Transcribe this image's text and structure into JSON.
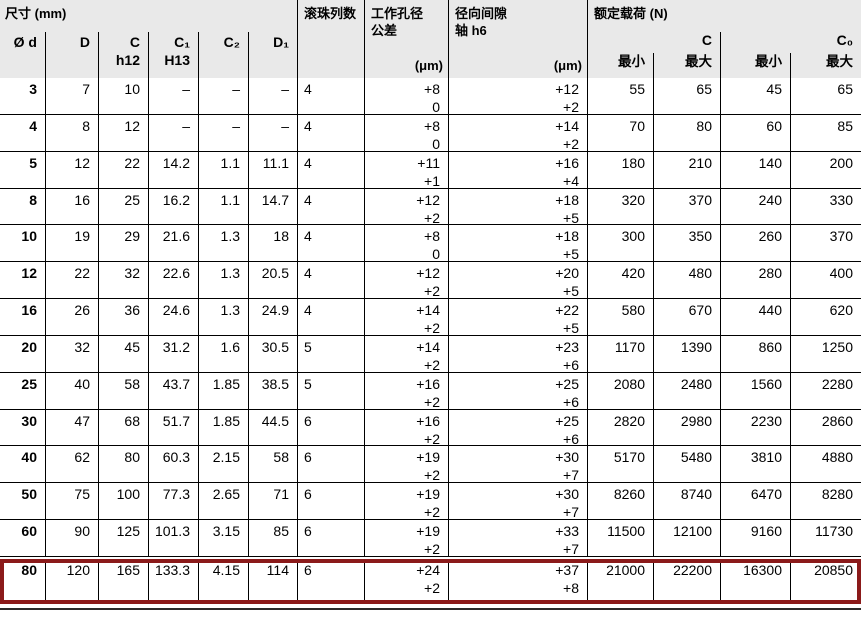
{
  "header": {
    "dim_group_label": "尺寸 (mm)",
    "symbols": [
      {
        "line1": "Ø d",
        "line2": ""
      },
      {
        "line1": "D",
        "line2": ""
      },
      {
        "line1": "C",
        "line2": "h12"
      },
      {
        "line1": "C₁",
        "line2": "H13"
      },
      {
        "line1": "C₂",
        "line2": ""
      },
      {
        "line1": "D₁",
        "line2": ""
      }
    ],
    "ball_rows_label": "滚珠列数",
    "bore": {
      "line1": "工作孔径",
      "line2": "公差",
      "unit": "(μm)"
    },
    "radial": {
      "line1": "径向间隙",
      "line2": "轴 h6",
      "unit": "(μm)"
    },
    "load": {
      "group_label": "额定载荷 (N)",
      "c_label": "C",
      "c0_label": "C₀",
      "min_label": "最小",
      "max_label": "最大"
    }
  },
  "rows": [
    {
      "d": "3",
      "D": "7",
      "C": "10",
      "C1": "–",
      "C2": "–",
      "D1": "–",
      "balls": "4",
      "bore_hi": "+8",
      "bore_lo": "0",
      "rad_hi": "+12",
      "rad_lo": "+2",
      "c_min": "55",
      "c_max": "65",
      "c0_min": "45",
      "c0_max": "65",
      "highlight": false
    },
    {
      "d": "4",
      "D": "8",
      "C": "12",
      "C1": "–",
      "C2": "–",
      "D1": "–",
      "balls": "4",
      "bore_hi": "+8",
      "bore_lo": "0",
      "rad_hi": "+14",
      "rad_lo": "+2",
      "c_min": "70",
      "c_max": "80",
      "c0_min": "60",
      "c0_max": "85",
      "highlight": false
    },
    {
      "d": "5",
      "D": "12",
      "C": "22",
      "C1": "14.2",
      "C2": "1.1",
      "D1": "11.1",
      "balls": "4",
      "bore_hi": "+11",
      "bore_lo": "+1",
      "rad_hi": "+16",
      "rad_lo": "+4",
      "c_min": "180",
      "c_max": "210",
      "c0_min": "140",
      "c0_max": "200",
      "highlight": false
    },
    {
      "d": "8",
      "D": "16",
      "C": "25",
      "C1": "16.2",
      "C2": "1.1",
      "D1": "14.7",
      "balls": "4",
      "bore_hi": "+12",
      "bore_lo": "+2",
      "rad_hi": "+18",
      "rad_lo": "+5",
      "c_min": "320",
      "c_max": "370",
      "c0_min": "240",
      "c0_max": "330",
      "highlight": false
    },
    {
      "d": "10",
      "D": "19",
      "C": "29",
      "C1": "21.6",
      "C2": "1.3",
      "D1": "18",
      "balls": "4",
      "bore_hi": "+8",
      "bore_lo": "0",
      "rad_hi": "+18",
      "rad_lo": "+5",
      "c_min": "300",
      "c_max": "350",
      "c0_min": "260",
      "c0_max": "370",
      "highlight": false
    },
    {
      "d": "12",
      "D": "22",
      "C": "32",
      "C1": "22.6",
      "C2": "1.3",
      "D1": "20.5",
      "balls": "4",
      "bore_hi": "+12",
      "bore_lo": "+2",
      "rad_hi": "+20",
      "rad_lo": "+5",
      "c_min": "420",
      "c_max": "480",
      "c0_min": "280",
      "c0_max": "400",
      "highlight": false
    },
    {
      "d": "16",
      "D": "26",
      "C": "36",
      "C1": "24.6",
      "C2": "1.3",
      "D1": "24.9",
      "balls": "4",
      "bore_hi": "+14",
      "bore_lo": "+2",
      "rad_hi": "+22",
      "rad_lo": "+5",
      "c_min": "580",
      "c_max": "670",
      "c0_min": "440",
      "c0_max": "620",
      "highlight": false
    },
    {
      "d": "20",
      "D": "32",
      "C": "45",
      "C1": "31.2",
      "C2": "1.6",
      "D1": "30.5",
      "balls": "5",
      "bore_hi": "+14",
      "bore_lo": "+2",
      "rad_hi": "+23",
      "rad_lo": "+6",
      "c_min": "1170",
      "c_max": "1390",
      "c0_min": "860",
      "c0_max": "1250",
      "highlight": false
    },
    {
      "d": "25",
      "D": "40",
      "C": "58",
      "C1": "43.7",
      "C2": "1.85",
      "D1": "38.5",
      "balls": "5",
      "bore_hi": "+16",
      "bore_lo": "+2",
      "rad_hi": "+25",
      "rad_lo": "+6",
      "c_min": "2080",
      "c_max": "2480",
      "c0_min": "1560",
      "c0_max": "2280",
      "highlight": false
    },
    {
      "d": "30",
      "D": "47",
      "C": "68",
      "C1": "51.7",
      "C2": "1.85",
      "D1": "44.5",
      "balls": "6",
      "bore_hi": "+16",
      "bore_lo": "+2",
      "rad_hi": "+25",
      "rad_lo": "+6",
      "c_min": "2820",
      "c_max": "2980",
      "c0_min": "2230",
      "c0_max": "2860",
      "highlight": false
    },
    {
      "d": "40",
      "D": "62",
      "C": "80",
      "C1": "60.3",
      "C2": "2.15",
      "D1": "58",
      "balls": "6",
      "bore_hi": "+19",
      "bore_lo": "+2",
      "rad_hi": "+30",
      "rad_lo": "+7",
      "c_min": "5170",
      "c_max": "5480",
      "c0_min": "3810",
      "c0_max": "4880",
      "highlight": false
    },
    {
      "d": "50",
      "D": "75",
      "C": "100",
      "C1": "77.3",
      "C2": "2.65",
      "D1": "71",
      "balls": "6",
      "bore_hi": "+19",
      "bore_lo": "+2",
      "rad_hi": "+30",
      "rad_lo": "+7",
      "c_min": "8260",
      "c_max": "8740",
      "c0_min": "6470",
      "c0_max": "8280",
      "highlight": false
    },
    {
      "d": "60",
      "D": "90",
      "C": "125",
      "C1": "101.3",
      "C2": "3.15",
      "D1": "85",
      "balls": "6",
      "bore_hi": "+19",
      "bore_lo": "+2",
      "rad_hi": "+33",
      "rad_lo": "+7",
      "c_min": "11500",
      "c_max": "12100",
      "c0_min": "9160",
      "c0_max": "11730",
      "highlight": false
    },
    {
      "d": "80",
      "D": "120",
      "C": "165",
      "C1": "133.3",
      "C2": "4.15",
      "D1": "114",
      "balls": "6",
      "bore_hi": "+24",
      "bore_lo": "+2",
      "rad_hi": "+37",
      "rad_lo": "+8",
      "c_min": "21000",
      "c_max": "22200",
      "c0_min": "16300",
      "c0_max": "20850",
      "highlight": true
    }
  ],
  "colors": {
    "highlight_border": "#8B1A1A",
    "header_bg": "#E9E9E9"
  }
}
